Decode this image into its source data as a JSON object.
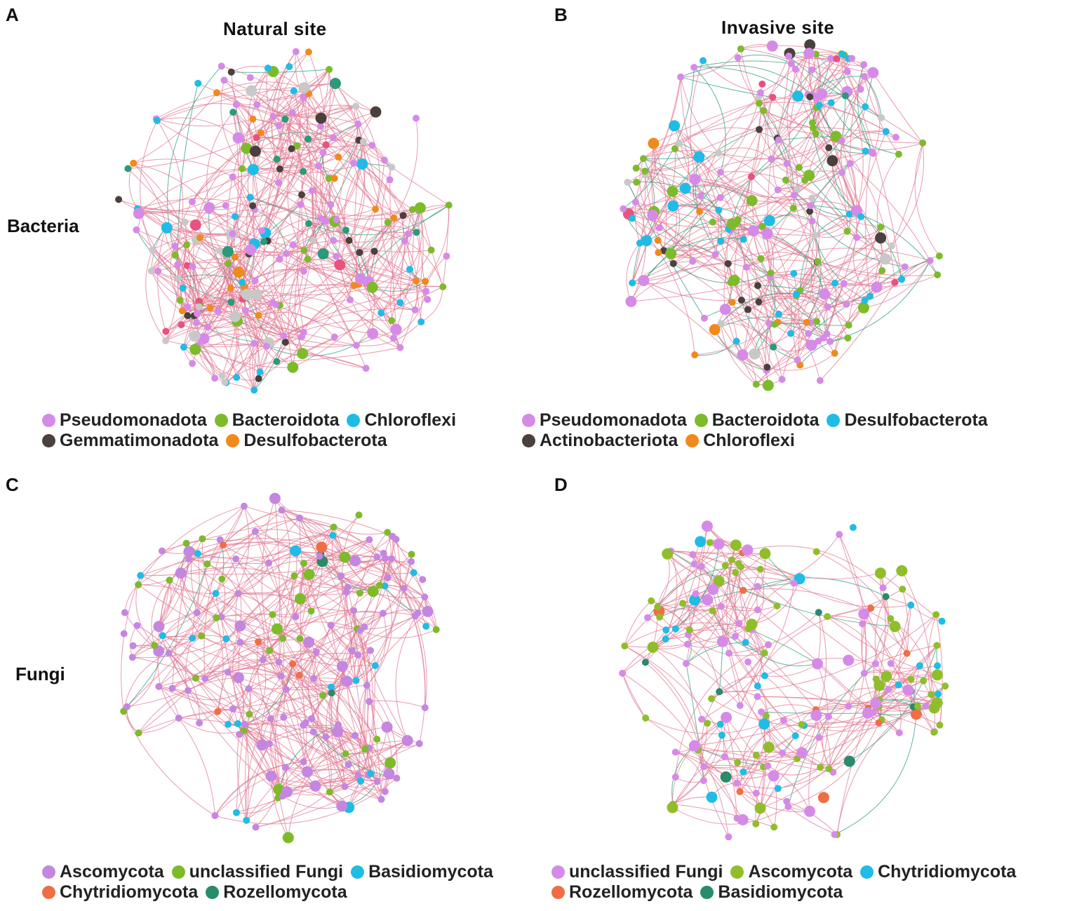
{
  "colors": {
    "edge_positive": "#E07A93",
    "edge_negative": "#2E9E7E"
  },
  "header": {
    "title_A": "Natural  site",
    "title_B": "Invasive  site"
  },
  "rows": {
    "bacteria": "Bacteria",
    "fungi": "Fungi"
  },
  "panels": [
    {
      "letter": "A",
      "legend": [
        {
          "label": "Pseudomonadota",
          "color": "#D68AE8"
        },
        {
          "label": "Bacteroidota",
          "color": "#7DBB2A"
        },
        {
          "label": "Chloroflexi",
          "color": "#1FBCE6"
        },
        {
          "label": "Gemmatimonadota",
          "color": "#4A403D"
        },
        {
          "label": "Desulfobacterota",
          "color": "#F08A1C"
        }
      ],
      "extra_colors": [
        "#C8C8C8",
        "#E8527E",
        "#2A9A7A"
      ]
    },
    {
      "letter": "B",
      "legend": [
        {
          "label": "Pseudomonadota",
          "color": "#D68AE8"
        },
        {
          "label": "Bacteroidota",
          "color": "#7DBB2A"
        },
        {
          "label": "Desulfobacterota",
          "color": "#1FBCE6"
        },
        {
          "label": "Actinobacteriota",
          "color": "#4A403D"
        },
        {
          "label": "Chloroflexi",
          "color": "#F08A1C"
        }
      ],
      "extra_colors": [
        "#C8C8C8",
        "#E8527E",
        "#2A9A7A"
      ]
    },
    {
      "letter": "C",
      "legend": [
        {
          "label": "Ascomycota",
          "color": "#C586E0"
        },
        {
          "label": "unclassified  Fungi",
          "color": "#7DBB2A"
        },
        {
          "label": "Basidiomycota",
          "color": "#1FBCE6"
        },
        {
          "label": "Chytridiomycota",
          "color": "#EF6E45"
        },
        {
          "label": "Rozellomycota",
          "color": "#2A8A6C"
        }
      ],
      "extra_colors": []
    },
    {
      "letter": "D",
      "legend": [
        {
          "label": "unclassified  Fungi",
          "color": "#D68AE8"
        },
        {
          "label": "Ascomycota",
          "color": "#90BE2A"
        },
        {
          "label": "Chytridiomycota",
          "color": "#1FBCE6"
        },
        {
          "label": "Rozellomycota",
          "color": "#EF6E45"
        },
        {
          "label": "Basidiomycota",
          "color": "#2A8A6C"
        }
      ],
      "extra_colors": []
    }
  ]
}
